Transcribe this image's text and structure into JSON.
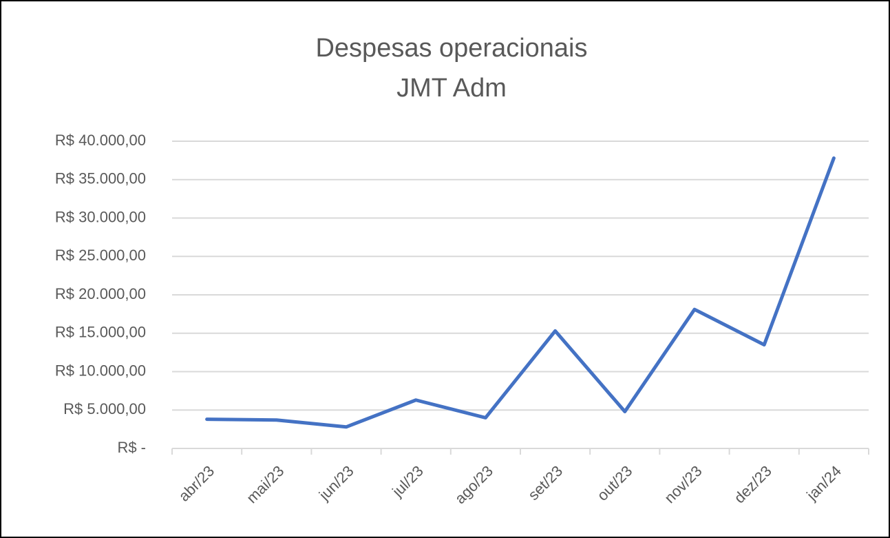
{
  "chart_data": {
    "type": "line",
    "title": "Despesas operacionais",
    "subtitle": "JMT Adm",
    "categories": [
      "abr/23",
      "mai/23",
      "jun/23",
      "jul/23",
      "ago/23",
      "set/23",
      "out/23",
      "nov/23",
      "dez/23",
      "jan/24"
    ],
    "values": [
      3800,
      3700,
      2800,
      6300,
      4000,
      15300,
      4800,
      18100,
      13500,
      37800
    ],
    "color": "#4472c4",
    "ylim": [
      0,
      40000
    ],
    "yticks": [
      {
        "value": 0,
        "label": "R$ -"
      },
      {
        "value": 5000,
        "label": "R$ 5.000,00"
      },
      {
        "value": 10000,
        "label": "R$ 10.000,00"
      },
      {
        "value": 15000,
        "label": "R$ 15.000,00"
      },
      {
        "value": 20000,
        "label": "R$ 20.000,00"
      },
      {
        "value": 25000,
        "label": "R$ 25.000,00"
      },
      {
        "value": 30000,
        "label": "R$ 30.000,00"
      },
      {
        "value": 35000,
        "label": "R$ 35.000,00"
      },
      {
        "value": 40000,
        "label": "R$ 40.000,00"
      }
    ],
    "grid": true
  }
}
